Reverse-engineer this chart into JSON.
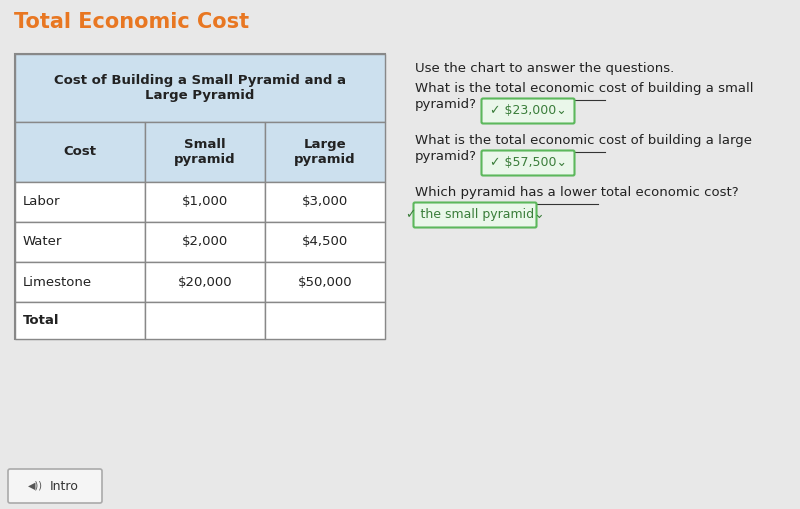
{
  "title": "Total Economic Cost",
  "title_color": "#E87722",
  "title_bg": "#d8d8d8",
  "content_bg": "#ffffff",
  "page_bg": "#e8e8e8",
  "table_title": "Cost of Building a Small Pyramid and a\nLarge Pyramid",
  "col_headers": [
    "Cost",
    "Small\npyramid",
    "Large\npyramid"
  ],
  "row_labels": [
    "Labor",
    "Water",
    "Limestone",
    "Total"
  ],
  "small_values": [
    "$1,000",
    "$2,000",
    "$20,000",
    ""
  ],
  "large_values": [
    "$3,000",
    "$4,500",
    "$50,000",
    ""
  ],
  "table_header_bg": "#cce0ee",
  "table_title_bg": "#cce0ee",
  "table_border_color": "#888888",
  "q1": "Use the chart to answer the questions.",
  "q2_line1": "What is the total economic cost of building a small",
  "q2_line2": "pyramid?",
  "q2_answer": "✓ $23,000⌄",
  "q3_line1": "What is the total economic cost of building a large",
  "q3_line2": "pyramid?",
  "q3_answer": "✓ $57,500⌄",
  "q4_line1": "Which pyramid has a lower total economic cost?",
  "q4_answer": "✓ the small pyramid⌄",
  "answer_bg": "#eaf7ea",
  "answer_border": "#5cb85c",
  "answer_text_color": "#3a7d3a",
  "footer_bg": "#e0e0e0",
  "intro_text": "Intro",
  "underline_color": "#333333"
}
